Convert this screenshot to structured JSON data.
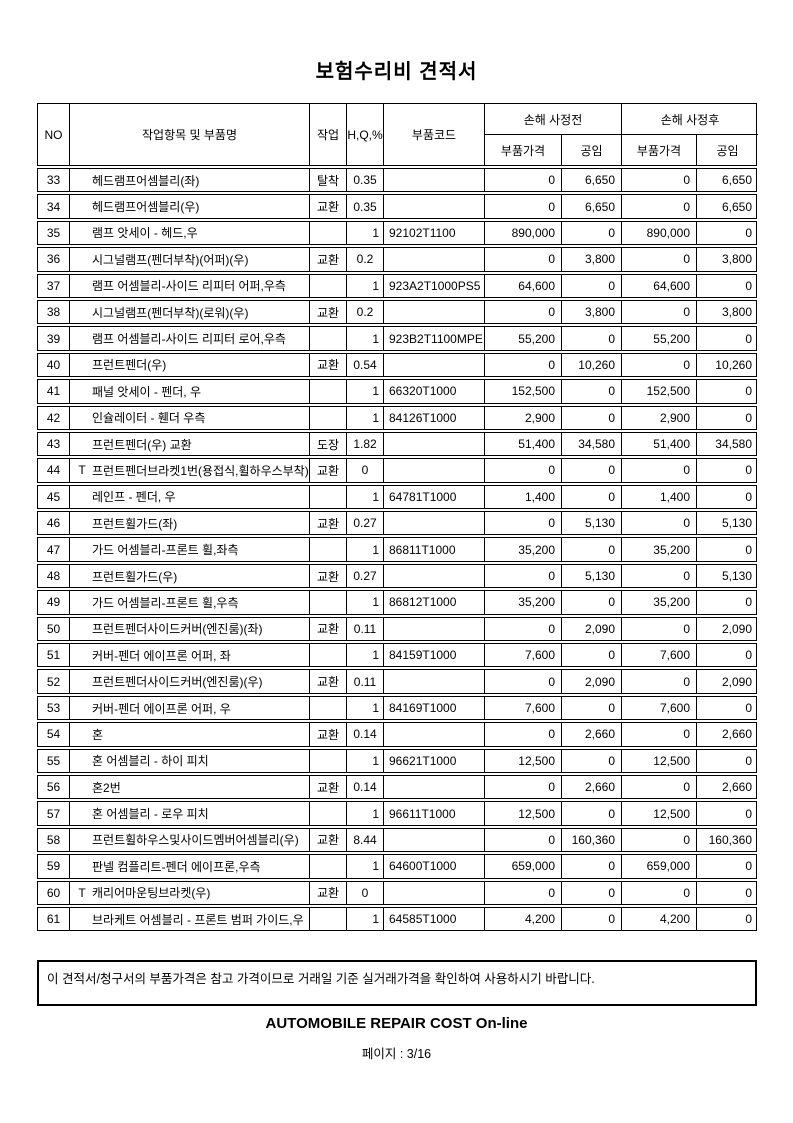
{
  "title": "보험수리비 견적서",
  "table": {
    "headers": {
      "no": "NO",
      "item": "작업항목 및 부품명",
      "work": "작업",
      "hq": "H,Q,%",
      "code": "부품코드",
      "before_group": "손해 사정전",
      "after_group": "손해 사정후",
      "part_price": "부품가격",
      "labor": "공임"
    },
    "rows": [
      {
        "no": "33",
        "t": "",
        "name": "헤드램프어셈블리(좌)",
        "work": "탈착",
        "hq": "0.35",
        "code": "",
        "price_before": "0",
        "labor_before": "6,650",
        "price_after": "0",
        "labor_after": "6,650"
      },
      {
        "no": "34",
        "t": "",
        "name": "헤드램프어셈블리(우)",
        "work": "교환",
        "hq": "0.35",
        "code": "",
        "price_before": "0",
        "labor_before": "6,650",
        "price_after": "0",
        "labor_after": "6,650"
      },
      {
        "no": "35",
        "t": "",
        "name": "램프 앗세이 - 헤드,우",
        "work": "",
        "hq": "1",
        "code": "92102T1100",
        "price_before": "890,000",
        "labor_before": "0",
        "price_after": "890,000",
        "labor_after": "0"
      },
      {
        "no": "36",
        "t": "",
        "name": "시그널램프(펜더부착)(어퍼)(우)",
        "work": "교환",
        "hq": "0.2",
        "code": "",
        "price_before": "0",
        "labor_before": "3,800",
        "price_after": "0",
        "labor_after": "3,800"
      },
      {
        "no": "37",
        "t": "",
        "name": "램프 어셈블리-사이드 리피터 어퍼,우측",
        "work": "",
        "hq": "1",
        "code": "923A2T1000PS5",
        "price_before": "64,600",
        "labor_before": "0",
        "price_after": "64,600",
        "labor_after": "0"
      },
      {
        "no": "38",
        "t": "",
        "name": "시그널램프(펜더부착)(로워)(우)",
        "work": "교환",
        "hq": "0.2",
        "code": "",
        "price_before": "0",
        "labor_before": "3,800",
        "price_after": "0",
        "labor_after": "3,800"
      },
      {
        "no": "39",
        "t": "",
        "name": "램프 어셈블리-사이드 리피터 로어,우측",
        "work": "",
        "hq": "1",
        "code": "923B2T1100MPE",
        "price_before": "55,200",
        "labor_before": "0",
        "price_after": "55,200",
        "labor_after": "0"
      },
      {
        "no": "40",
        "t": "",
        "name": "프런트펜더(우)",
        "work": "교환",
        "hq": "0.54",
        "code": "",
        "price_before": "0",
        "labor_before": "10,260",
        "price_after": "0",
        "labor_after": "10,260"
      },
      {
        "no": "41",
        "t": "",
        "name": "패널 앗세이 - 펜더,  우",
        "work": "",
        "hq": "1",
        "code": "66320T1000",
        "price_before": "152,500",
        "labor_before": "0",
        "price_after": "152,500",
        "labor_after": "0"
      },
      {
        "no": "42",
        "t": "",
        "name": "인슐레이터 - 휀더 우측",
        "work": "",
        "hq": "1",
        "code": "84126T1000",
        "price_before": "2,900",
        "labor_before": "0",
        "price_after": "2,900",
        "labor_after": "0"
      },
      {
        "no": "43",
        "t": "",
        "name": "프런트펜더(우) 교환",
        "work": "도장",
        "hq": "1.82",
        "code": "",
        "price_before": "51,400",
        "labor_before": "34,580",
        "price_after": "51,400",
        "labor_after": "34,580"
      },
      {
        "no": "44",
        "t": "T",
        "name": "프런트펜더브라켓1번(용접식,휠하우스부착)",
        "work": "교환",
        "hq": "0",
        "code": "",
        "price_before": "0",
        "labor_before": "0",
        "price_after": "0",
        "labor_after": "0"
      },
      {
        "no": "45",
        "t": "",
        "name": "레인프 - 펜더,  우",
        "work": "",
        "hq": "1",
        "code": "64781T1000",
        "price_before": "1,400",
        "labor_before": "0",
        "price_after": "1,400",
        "labor_after": "0"
      },
      {
        "no": "46",
        "t": "",
        "name": "프런트휠가드(좌)",
        "work": "교환",
        "hq": "0.27",
        "code": "",
        "price_before": "0",
        "labor_before": "5,130",
        "price_after": "0",
        "labor_after": "5,130"
      },
      {
        "no": "47",
        "t": "",
        "name": "가드 어셈블리-프론트 휠,좌측",
        "work": "",
        "hq": "1",
        "code": "86811T1000",
        "price_before": "35,200",
        "labor_before": "0",
        "price_after": "35,200",
        "labor_after": "0"
      },
      {
        "no": "48",
        "t": "",
        "name": "프런트휠가드(우)",
        "work": "교환",
        "hq": "0.27",
        "code": "",
        "price_before": "0",
        "labor_before": "5,130",
        "price_after": "0",
        "labor_after": "5,130"
      },
      {
        "no": "49",
        "t": "",
        "name": "가드 어셈블리-프론트 휠,우측",
        "work": "",
        "hq": "1",
        "code": "86812T1000",
        "price_before": "35,200",
        "labor_before": "0",
        "price_after": "35,200",
        "labor_after": "0"
      },
      {
        "no": "50",
        "t": "",
        "name": "프런트펜더사이드커버(엔진룸)(좌)",
        "work": "교환",
        "hq": "0.11",
        "code": "",
        "price_before": "0",
        "labor_before": "2,090",
        "price_after": "0",
        "labor_after": "2,090"
      },
      {
        "no": "51",
        "t": "",
        "name": "커버-펜더 에이프론 어퍼, 좌",
        "work": "",
        "hq": "1",
        "code": "84159T1000",
        "price_before": "7,600",
        "labor_before": "0",
        "price_after": "7,600",
        "labor_after": "0"
      },
      {
        "no": "52",
        "t": "",
        "name": "프런트펜더사이드커버(엔진룸)(우)",
        "work": "교환",
        "hq": "0.11",
        "code": "",
        "price_before": "0",
        "labor_before": "2,090",
        "price_after": "0",
        "labor_after": "2,090"
      },
      {
        "no": "53",
        "t": "",
        "name": "커버-펜더 에이프론 어퍼, 우",
        "work": "",
        "hq": "1",
        "code": "84169T1000",
        "price_before": "7,600",
        "labor_before": "0",
        "price_after": "7,600",
        "labor_after": "0"
      },
      {
        "no": "54",
        "t": "",
        "name": "혼",
        "work": "교환",
        "hq": "0.14",
        "code": "",
        "price_before": "0",
        "labor_before": "2,660",
        "price_after": "0",
        "labor_after": "2,660"
      },
      {
        "no": "55",
        "t": "",
        "name": "혼 어셈블리 - 하이 피치",
        "work": "",
        "hq": "1",
        "code": "96621T1000",
        "price_before": "12,500",
        "labor_before": "0",
        "price_after": "12,500",
        "labor_after": "0"
      },
      {
        "no": "56",
        "t": "",
        "name": "혼2번",
        "work": "교환",
        "hq": "0.14",
        "code": "",
        "price_before": "0",
        "labor_before": "2,660",
        "price_after": "0",
        "labor_after": "2,660"
      },
      {
        "no": "57",
        "t": "",
        "name": "혼 어셈블리 - 로우 피치",
        "work": "",
        "hq": "1",
        "code": "96611T1000",
        "price_before": "12,500",
        "labor_before": "0",
        "price_after": "12,500",
        "labor_after": "0"
      },
      {
        "no": "58",
        "t": "",
        "name": "프런트휠하우스및사이드멤버어셈블리(우)",
        "work": "교환",
        "hq": "8.44",
        "code": "",
        "price_before": "0",
        "labor_before": "160,360",
        "price_after": "0",
        "labor_after": "160,360"
      },
      {
        "no": "59",
        "t": "",
        "name": "판넬 컴플리트-펜더 에이프론,우측",
        "work": "",
        "hq": "1",
        "code": "64600T1000",
        "price_before": "659,000",
        "labor_before": "0",
        "price_after": "659,000",
        "labor_after": "0"
      },
      {
        "no": "60",
        "t": "T",
        "name": "캐리어마운팅브라켓(우)",
        "work": "교환",
        "hq": "0",
        "code": "",
        "price_before": "0",
        "labor_before": "0",
        "price_after": "0",
        "labor_after": "0"
      },
      {
        "no": "61",
        "t": "",
        "name": "브라케트 어셈블리 - 프론트 범퍼 가이드,우",
        "work": "",
        "hq": "1",
        "code": "64585T1000",
        "price_before": "4,200",
        "labor_before": "0",
        "price_after": "4,200",
        "labor_after": "0"
      }
    ]
  },
  "notice": "이 견적서/청구서의 부품가격은 참고 가격이므로 거래일 기준 실거래가격을 확인하여 사용하시기 바랍니다.",
  "footer": {
    "app_title": "AUTOMOBILE REPAIR COST On-line",
    "page_label": "페이지 : 3/16"
  }
}
